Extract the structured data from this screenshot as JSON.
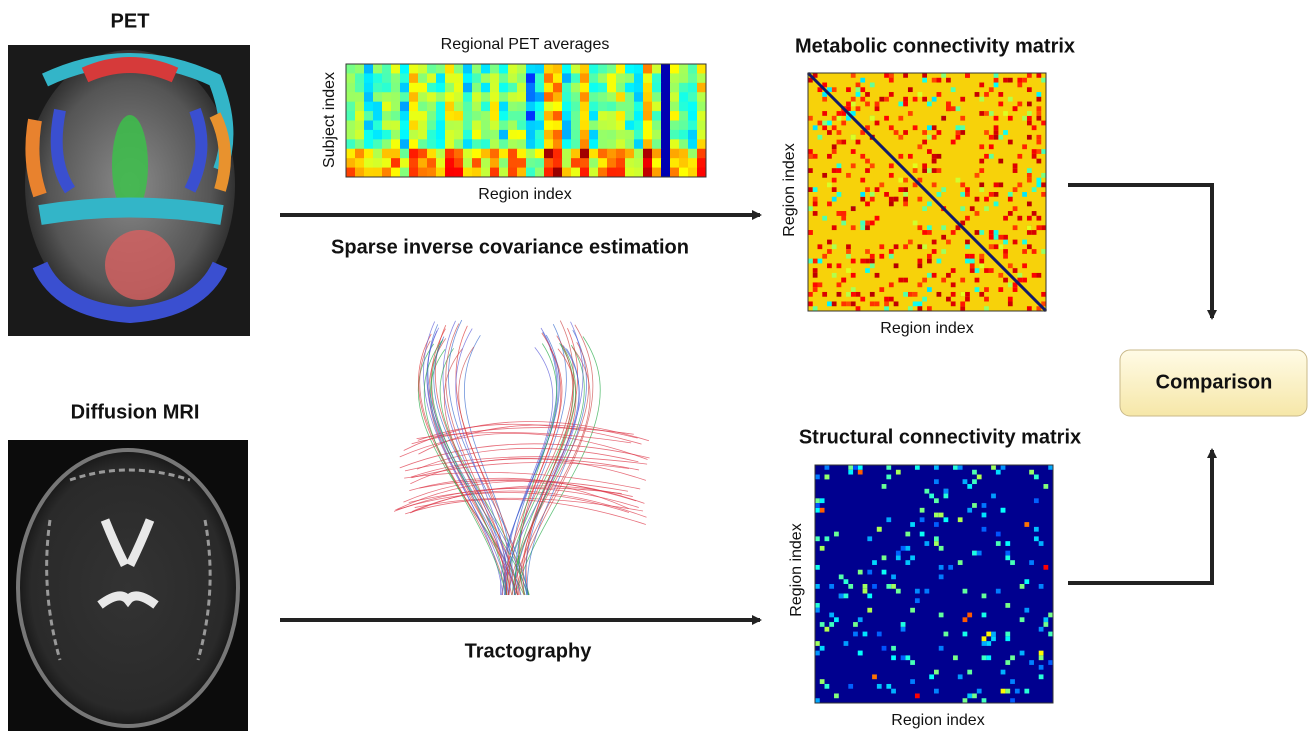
{
  "inputs": [
    {
      "label": "PET"
    },
    {
      "label": "Diffusion MRI"
    }
  ],
  "pet_averages": {
    "title": "Regional PET averages",
    "y_label": "Subject index",
    "x_label": "Region index"
  },
  "edges": [
    {
      "label": "Sparse inverse covariance estimation"
    },
    {
      "label": "Tractography"
    }
  ],
  "matrices": [
    {
      "title": "Metabolic connectivity matrix",
      "y_label": "Region index",
      "x_label": "Region index"
    },
    {
      "title": "Structural connectivity matrix",
      "y_label": "Region index",
      "x_label": "Region index"
    }
  ],
  "comparison": {
    "label": "Comparison"
  }
}
